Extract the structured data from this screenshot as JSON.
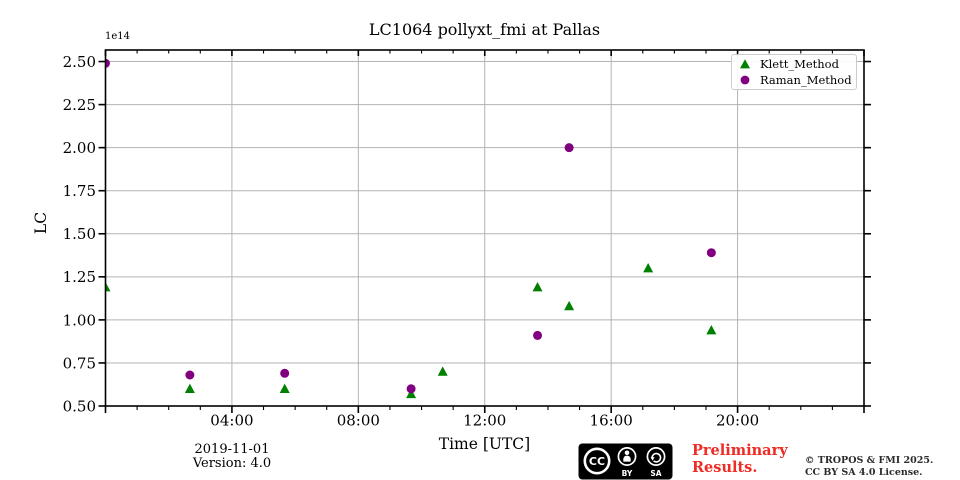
{
  "chart_data": {
    "type": "scatter",
    "title": "LC1064 pollyxt_fmi at Pallas",
    "xlabel": "Time [UTC]",
    "ylabel": "LC",
    "y_offset_label": "1e14",
    "xlim_hours": [
      0,
      24
    ],
    "ylim": [
      0.5,
      2.567
    ],
    "x_major_tick_hours": [
      4,
      8,
      12,
      16,
      20
    ],
    "x_major_tick_labels": [
      "04:00",
      "08:00",
      "12:00",
      "16:00",
      "20:00"
    ],
    "x_minor_tick_interval_hours": 1,
    "y_major_ticks": [
      0.5,
      0.75,
      1.0,
      1.25,
      1.5,
      1.75,
      2.0,
      2.25,
      2.5
    ],
    "grid": true,
    "legend_position": "upper right",
    "series": [
      {
        "name": "Klett_Method",
        "marker": "triangle",
        "color": "#008000",
        "points": [
          {
            "time": "00:00",
            "hour": 0.0,
            "lc_1e14": 1.19
          },
          {
            "time": "02:40",
            "hour": 2.67,
            "lc_1e14": 0.6
          },
          {
            "time": "05:40",
            "hour": 5.67,
            "lc_1e14": 0.6
          },
          {
            "time": "09:40",
            "hour": 9.67,
            "lc_1e14": 0.57
          },
          {
            "time": "10:40",
            "hour": 10.67,
            "lc_1e14": 0.7
          },
          {
            "time": "13:40",
            "hour": 13.67,
            "lc_1e14": 1.19
          },
          {
            "time": "14:40",
            "hour": 14.67,
            "lc_1e14": 1.08
          },
          {
            "time": "17:10",
            "hour": 17.17,
            "lc_1e14": 1.3
          },
          {
            "time": "19:10",
            "hour": 19.17,
            "lc_1e14": 0.94
          }
        ]
      },
      {
        "name": "Raman_Method",
        "marker": "circle",
        "color": "#800080",
        "points": [
          {
            "time": "00:00",
            "hour": 0.0,
            "lc_1e14": 2.49
          },
          {
            "time": "02:40",
            "hour": 2.67,
            "lc_1e14": 0.68
          },
          {
            "time": "05:40",
            "hour": 5.67,
            "lc_1e14": 0.69
          },
          {
            "time": "09:40",
            "hour": 9.67,
            "lc_1e14": 0.6
          },
          {
            "time": "13:40",
            "hour": 13.67,
            "lc_1e14": 0.91
          },
          {
            "time": "14:40",
            "hour": 14.67,
            "lc_1e14": 2.0
          },
          {
            "time": "19:10",
            "hour": 19.17,
            "lc_1e14": 1.39
          }
        ]
      }
    ]
  },
  "colors": {
    "klett": "#008000",
    "raman": "#800080",
    "grid": "#b3b3b3",
    "spine": "#000000",
    "preliminary_red": "#ee2b24",
    "copyright_text": "#2b2b2b",
    "badge_bg": "#000000"
  },
  "footer": {
    "date": "2019-11-01",
    "version": "Version: 4.0",
    "preliminary_line1": "Preliminary",
    "preliminary_line2": "Results.",
    "copyright_line1": "© TROPOS & FMI 2025.",
    "copyright_line2": "CC BY SA 4.0 License.",
    "cc_label": "CC",
    "by_label": "BY",
    "sa_label": "SA"
  }
}
